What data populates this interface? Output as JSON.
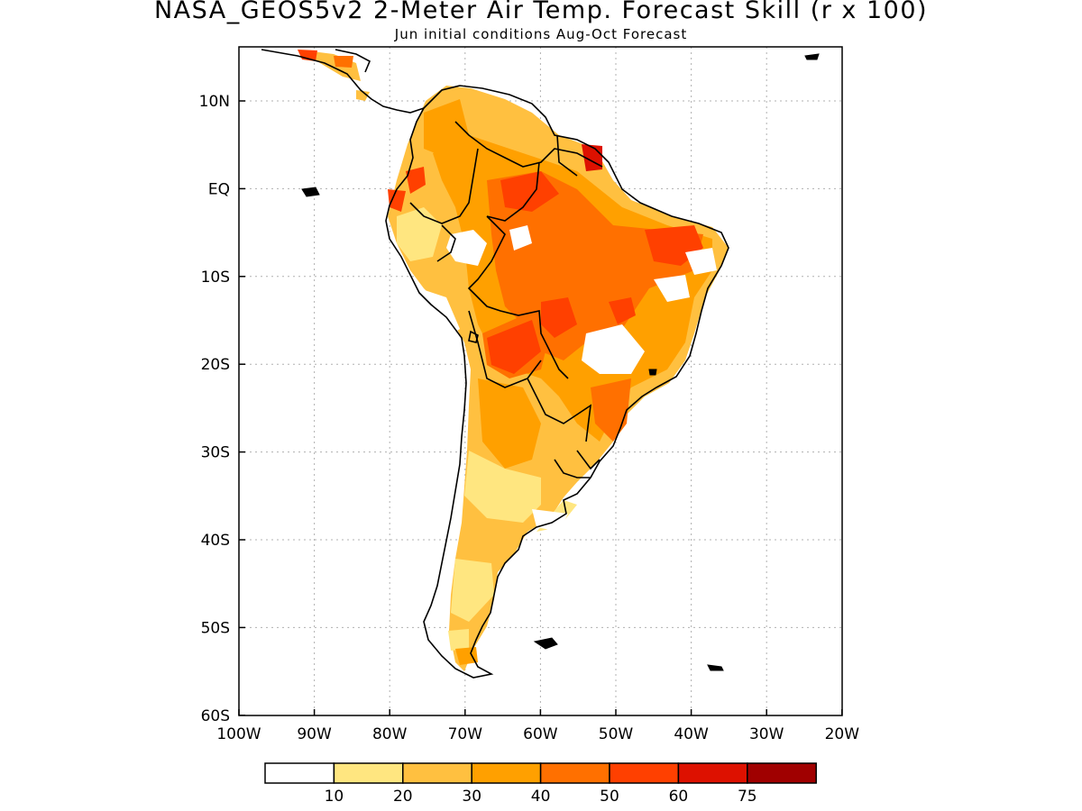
{
  "title": "NASA_GEOS5v2 2-Meter Air Temp. Forecast Skill (r x 100)",
  "subtitle": "Jun initial conditions   Aug-Oct Forecast",
  "map": {
    "lon_labels": [
      "100W",
      "90W",
      "80W",
      "70W",
      "60W",
      "50W",
      "40W",
      "30W",
      "20W"
    ],
    "lat_labels": [
      "10N",
      "EQ",
      "10S",
      "20S",
      "30S",
      "40S",
      "50S",
      "60S"
    ]
  },
  "colorbar": {
    "colors": [
      "#ffffff",
      "#ffe680",
      "#ffc040",
      "#ffa000",
      "#ff7000",
      "#ff4000",
      "#dd1100",
      "#a00000"
    ],
    "tick_labels": [
      "10",
      "20",
      "30",
      "40",
      "50",
      "60",
      "75"
    ]
  },
  "colors": {
    "land_outline": "#000000",
    "grid": "#b0b0b0"
  }
}
